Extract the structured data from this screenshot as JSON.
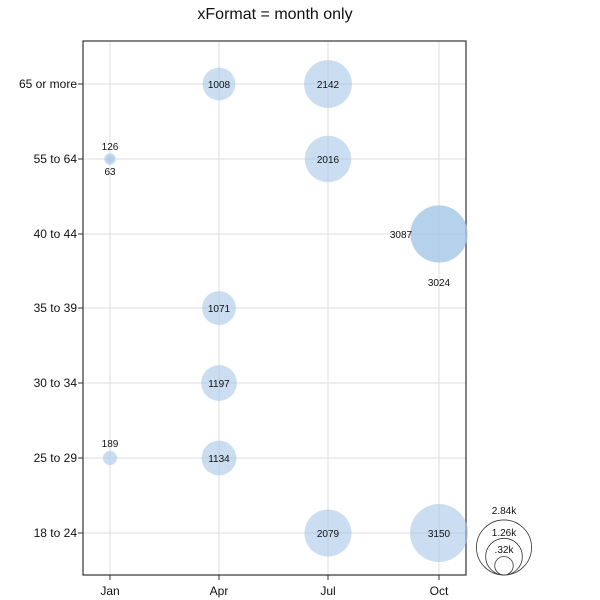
{
  "chart_data": {
    "type": "bubble",
    "title": "xFormat = month only",
    "x_ticks": [
      "Jan",
      "Apr",
      "Jul",
      "Oct"
    ],
    "y_categories": [
      "18 to 24",
      "25 to 29",
      "30 to 34",
      "35 to 39",
      "40 to 44",
      "55 to 64",
      "65 or more"
    ],
    "grid": true,
    "points": [
      {
        "x": "Jan",
        "y": "55 to 64",
        "value": 63,
        "label": "63"
      },
      {
        "x": "Jan",
        "y": "55 to 64",
        "value": 126,
        "label": "126"
      },
      {
        "x": "Jan",
        "y": "25 to 29",
        "value": 189,
        "label": "189"
      },
      {
        "x": "Apr",
        "y": "65 or more",
        "value": 1008,
        "label": "1008"
      },
      {
        "x": "Apr",
        "y": "35 to 39",
        "value": 1071,
        "label": "1071"
      },
      {
        "x": "Apr",
        "y": "30 to 34",
        "value": 1197,
        "label": "1197"
      },
      {
        "x": "Apr",
        "y": "25 to 29",
        "value": 1134,
        "label": "1134"
      },
      {
        "x": "Jul",
        "y": "65 or more",
        "value": 2142,
        "label": "2142"
      },
      {
        "x": "Jul",
        "y": "55 to 64",
        "value": 2016,
        "label": "2016"
      },
      {
        "x": "Jul",
        "y": "18 to 24",
        "value": 2079,
        "label": "2079"
      },
      {
        "x": "Oct",
        "y": "40 to 44",
        "value": 3087,
        "label": "3087"
      },
      {
        "x": "Oct",
        "y": "40 to 44",
        "value": 3024,
        "label": "3024"
      },
      {
        "x": "Oct",
        "y": "18 to 24",
        "value": 3150,
        "label": "3150"
      }
    ],
    "size_legend": {
      "labels": [
        "2.84k",
        "1.26k",
        ".32k"
      ],
      "values": [
        2840,
        1260,
        320
      ],
      "position": "bottom-right"
    },
    "colors": {
      "bubble": "#a8c8e8",
      "axis": "#333333",
      "grid": "#dddddd"
    }
  }
}
